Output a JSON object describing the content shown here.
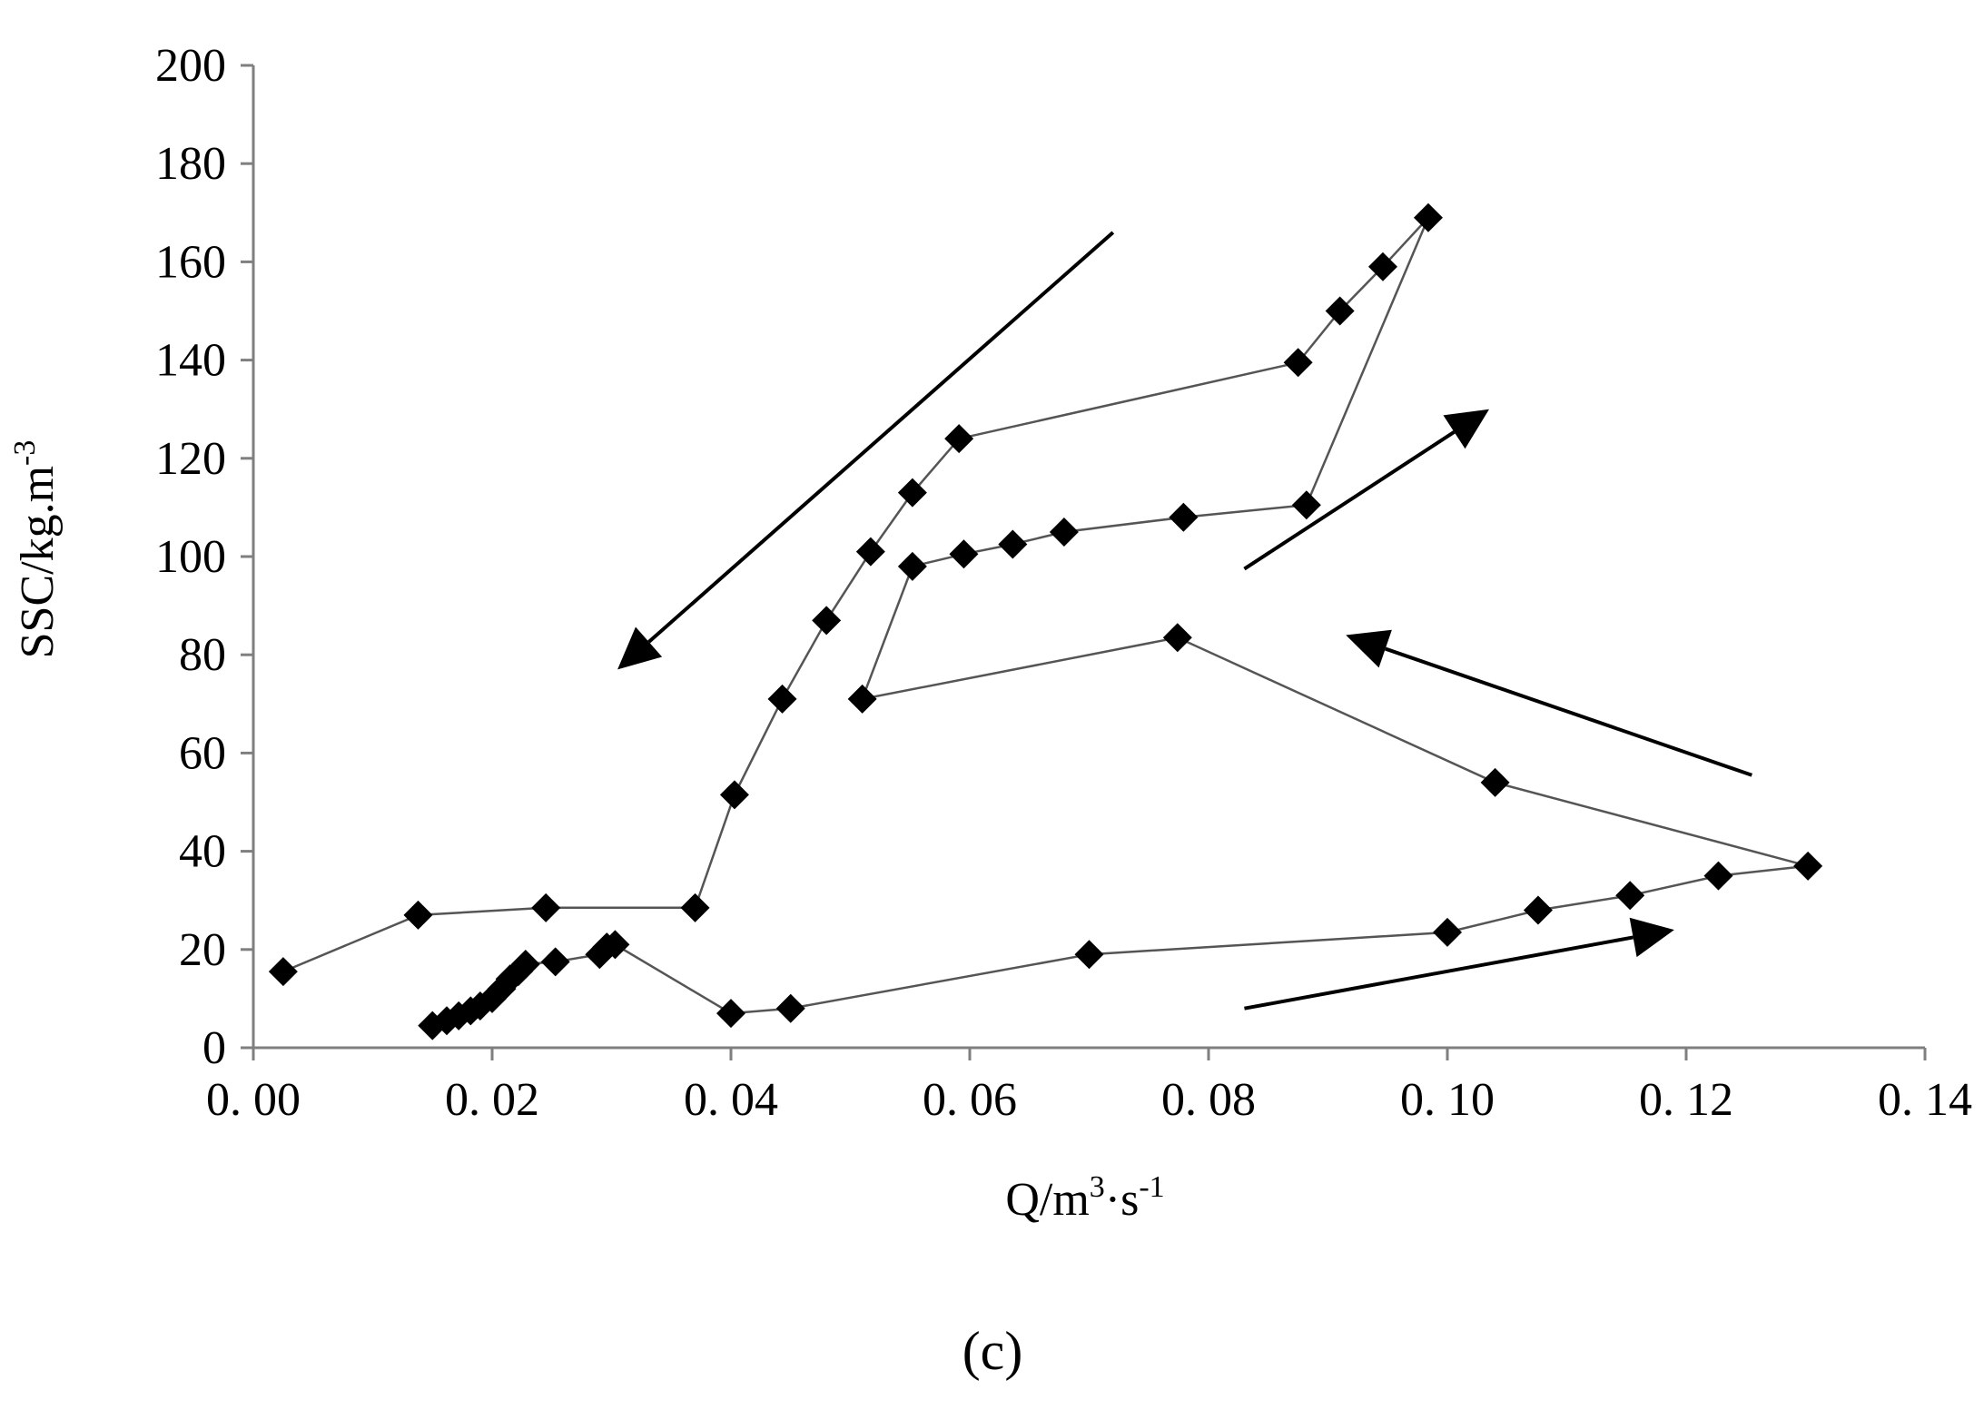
{
  "chart_data": {
    "type": "scatter",
    "xlabel": {
      "base": "Q/m",
      "sup1": "3",
      "mid": "·s",
      "sup2": "-1"
    },
    "ylabel": {
      "base": "SSC/kg.m",
      "sup": "-3"
    },
    "panel_label": "(c)",
    "xlim": [
      0,
      0.14
    ],
    "ylim": [
      0,
      200
    ],
    "x_ticks": [
      0,
      0.02,
      0.04,
      0.06,
      0.08,
      0.1,
      0.12,
      0.14
    ],
    "x_tick_labels": [
      "0. 00",
      "0. 02",
      "0. 04",
      "0. 06",
      "0. 08",
      "0. 10",
      "0. 12",
      "0. 14"
    ],
    "y_ticks": [
      0,
      20,
      40,
      60,
      80,
      100,
      120,
      140,
      160,
      180,
      200
    ],
    "y_tick_labels": [
      "0",
      "20",
      "40",
      "60",
      "80",
      "100",
      "120",
      "140",
      "160",
      "180",
      "200"
    ],
    "grid": false,
    "legend": false,
    "marker": "diamond",
    "color": "#000000",
    "line_color": "#555555",
    "series": [
      {
        "x": [
          0.015,
          0.0162,
          0.0172,
          0.0182,
          0.019,
          0.02,
          0.0208,
          0.0215,
          0.0222,
          0.0228,
          0.0253,
          0.029,
          0.0296,
          0.0303,
          0.04,
          0.045,
          0.07,
          0.1,
          0.1076,
          0.1153,
          0.1227,
          0.1302,
          0.104,
          0.0774,
          0.051,
          0.0552,
          0.0595,
          0.0636,
          0.0679,
          0.0779,
          0.0882,
          0.0984,
          0.0946,
          0.091,
          0.0875,
          0.0591,
          0.0552,
          0.0517,
          0.048,
          0.0443,
          0.0403,
          0.037,
          0.0245,
          0.0138,
          0.0025
        ],
        "y": [
          4.5,
          5.5,
          6.5,
          7.5,
          8.5,
          10.0,
          12.0,
          14.0,
          15.5,
          17.0,
          17.5,
          19.0,
          20.5,
          21.0,
          7.0,
          8.0,
          19.0,
          23.5,
          28.0,
          31.0,
          35.0,
          37.0,
          54.0,
          83.5,
          71.0,
          98.0,
          100.5,
          102.5,
          105.0,
          108.0,
          110.5,
          169.0,
          159.0,
          150.0,
          139.5,
          124.0,
          113.0,
          101.0,
          87.0,
          71.0,
          51.5,
          28.5,
          28.5,
          27.0,
          15.5
        ]
      }
    ],
    "annotations": [
      {
        "type": "arrow",
        "from": [
          0.072,
          166.0
        ],
        "to": [
          0.0305,
          77.0
        ]
      },
      {
        "type": "arrow",
        "from": [
          0.083,
          97.5
        ],
        "to": [
          0.1035,
          130.0
        ]
      },
      {
        "type": "arrow",
        "from": [
          0.1255,
          55.5
        ],
        "to": [
          0.0915,
          84.0
        ]
      },
      {
        "type": "arrow",
        "from": [
          0.083,
          8.0
        ],
        "to": [
          0.119,
          24.0
        ]
      }
    ]
  }
}
